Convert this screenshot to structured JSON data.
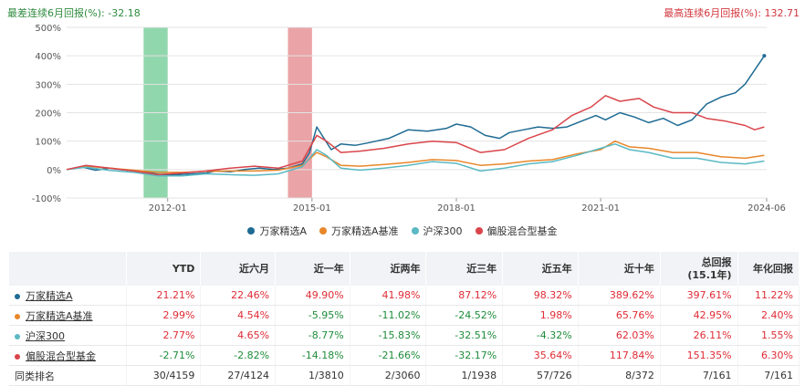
{
  "stats": {
    "worst_label": "最差连续6月回报(%):",
    "worst_value": "-32.18",
    "best_label": "最高连续6月回报(%):",
    "best_value": "132.71",
    "worst_color": "#2e8b3d",
    "best_color": "#d2363c"
  },
  "chart_data": {
    "type": "line",
    "y_tick_labels": [
      "500%",
      "400%",
      "300%",
      "200%",
      "100%",
      "0%",
      "-100%"
    ],
    "x_tick_labels": [
      "2012-01",
      "2015-01",
      "2018-01",
      "2021-01",
      "2024-06"
    ],
    "ylim": [
      -100,
      500
    ],
    "xlim": [
      2009.9,
      2024.45
    ],
    "x_ticks": [
      2012.0,
      2015.0,
      2018.0,
      2021.0,
      2024.45
    ],
    "grid": true,
    "legend_position": "bottom-center",
    "highlight_bands": [
      {
        "x0": 2011.5,
        "x1": 2012.0,
        "color": "#6cc992"
      },
      {
        "x0": 2014.5,
        "x1": 2015.0,
        "color": "#e38488"
      }
    ],
    "series": [
      {
        "name": "万家精选A",
        "color": "#1f6b93",
        "x": [
          2009.9,
          2010.2,
          2010.5,
          2010.8,
          2011.0,
          2011.3,
          2011.6,
          2011.9,
          2012.2,
          2012.5,
          2012.8,
          2013.0,
          2013.3,
          2013.6,
          2013.9,
          2014.2,
          2014.5,
          2014.8,
          2014.95,
          2015.1,
          2015.25,
          2015.4,
          2015.6,
          2015.9,
          2016.2,
          2016.6,
          2017.0,
          2017.4,
          2017.8,
          2018.0,
          2018.3,
          2018.6,
          2018.9,
          2019.1,
          2019.4,
          2019.7,
          2020.0,
          2020.3,
          2020.6,
          2020.9,
          2021.1,
          2021.4,
          2021.7,
          2022.0,
          2022.3,
          2022.6,
          2022.9,
          2023.2,
          2023.5,
          2023.8,
          2024.0,
          2024.2,
          2024.4
        ],
        "y": [
          0,
          10,
          -2,
          5,
          0,
          -5,
          -10,
          -20,
          -18,
          -15,
          -12,
          -5,
          -8,
          0,
          5,
          0,
          5,
          20,
          60,
          150,
          110,
          70,
          90,
          85,
          95,
          110,
          140,
          135,
          145,
          160,
          150,
          120,
          110,
          130,
          140,
          150,
          145,
          150,
          170,
          190,
          175,
          200,
          185,
          165,
          180,
          155,
          175,
          230,
          255,
          270,
          300,
          350,
          400
        ]
      },
      {
        "name": "万家精选A基准",
        "color": "#e8872a",
        "x": [
          2009.9,
          2010.3,
          2010.8,
          2011.3,
          2011.8,
          2012.3,
          2012.8,
          2013.3,
          2013.8,
          2014.3,
          2014.8,
          2015.1,
          2015.3,
          2015.6,
          2016.0,
          2016.5,
          2017.0,
          2017.5,
          2018.0,
          2018.5,
          2019.0,
          2019.5,
          2020.0,
          2020.5,
          2021.0,
          2021.3,
          2021.6,
          2022.0,
          2022.5,
          2023.0,
          2023.5,
          2024.0,
          2024.4
        ],
        "y": [
          0,
          12,
          5,
          -2,
          -10,
          -10,
          -6,
          -5,
          -5,
          -2,
          15,
          60,
          45,
          15,
          12,
          18,
          25,
          35,
          32,
          15,
          20,
          30,
          35,
          55,
          70,
          100,
          80,
          75,
          60,
          60,
          45,
          40,
          50
        ]
      },
      {
        "name": "沪深300",
        "color": "#5ab9c3",
        "x": [
          2009.9,
          2010.3,
          2010.8,
          2011.3,
          2011.8,
          2012.3,
          2012.8,
          2013.3,
          2013.8,
          2014.3,
          2014.8,
          2015.1,
          2015.3,
          2015.6,
          2016.0,
          2016.5,
          2017.0,
          2017.5,
          2018.0,
          2018.5,
          2019.0,
          2019.5,
          2020.0,
          2020.5,
          2021.0,
          2021.3,
          2021.6,
          2022.0,
          2022.5,
          2023.0,
          2023.5,
          2024.0,
          2024.4
        ],
        "y": [
          0,
          8,
          -3,
          -10,
          -22,
          -22,
          -15,
          -18,
          -20,
          -15,
          10,
          70,
          50,
          5,
          -2,
          5,
          15,
          28,
          22,
          -5,
          5,
          20,
          28,
          50,
          75,
          90,
          70,
          60,
          40,
          40,
          25,
          20,
          30
        ]
      },
      {
        "name": "偏股混合型基金",
        "color": "#d9454b",
        "x": [
          2009.9,
          2010.3,
          2010.8,
          2011.3,
          2011.8,
          2012.3,
          2012.8,
          2013.3,
          2013.8,
          2014.3,
          2014.8,
          2015.1,
          2015.3,
          2015.6,
          2016.0,
          2016.5,
          2017.0,
          2017.5,
          2018.0,
          2018.5,
          2019.0,
          2019.5,
          2020.0,
          2020.4,
          2020.8,
          2021.1,
          2021.4,
          2021.8,
          2022.1,
          2022.5,
          2022.9,
          2023.2,
          2023.6,
          2024.0,
          2024.2,
          2024.4
        ],
        "y": [
          0,
          15,
          5,
          -5,
          -18,
          -12,
          -5,
          5,
          12,
          5,
          30,
          120,
          100,
          60,
          65,
          75,
          90,
          100,
          95,
          60,
          70,
          110,
          140,
          190,
          220,
          260,
          240,
          250,
          220,
          200,
          200,
          180,
          170,
          155,
          140,
          150
        ]
      }
    ]
  },
  "table": {
    "headers": [
      "",
      "YTD",
      "近六月",
      "近一年",
      "近两年",
      "近三年",
      "近五年",
      "近十年",
      "总回报",
      "年化回报"
    ],
    "total_sub": "(15.1年)",
    "rows": [
      {
        "name": "万家精选A",
        "color": "#1f6b93",
        "values": [
          "21.21%",
          "22.46%",
          "49.90%",
          "41.98%",
          "87.12%",
          "98.32%",
          "389.62%",
          "397.61%",
          "11.22%"
        ]
      },
      {
        "name": "万家精选A基准",
        "color": "#e8872a",
        "values": [
          "2.99%",
          "4.54%",
          "-5.95%",
          "-11.02%",
          "-24.52%",
          "1.98%",
          "65.76%",
          "42.95%",
          "2.40%"
        ]
      },
      {
        "name": "沪深300",
        "color": "#5ab9c3",
        "values": [
          "2.77%",
          "4.65%",
          "-8.77%",
          "-15.83%",
          "-32.51%",
          "-4.32%",
          "62.03%",
          "26.11%",
          "1.55%"
        ]
      },
      {
        "name": "偏股混合型基金",
        "color": "#d9454b",
        "values": [
          "-2.71%",
          "-2.82%",
          "-14.18%",
          "-21.66%",
          "-32.17%",
          "35.64%",
          "117.84%",
          "151.35%",
          "6.30%"
        ]
      }
    ],
    "rank_label": "同类排名",
    "rank_values": [
      "30/4159",
      "27/4124",
      "1/3810",
      "2/3060",
      "1/1938",
      "57/726",
      "8/372",
      "7/161",
      "7/161"
    ]
  }
}
